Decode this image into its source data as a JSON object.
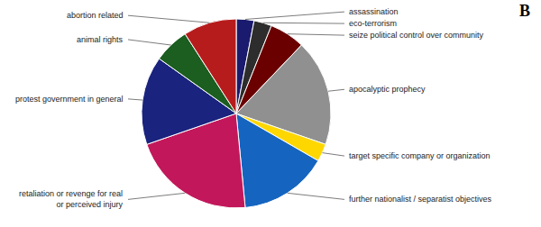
{
  "chart_data": {
    "type": "pie",
    "title": "B",
    "categories": [
      "assassination",
      "eco-terrorism",
      "seize political control over community",
      "apocalyptic prophecy",
      "target specific company or organization",
      "further nationalist / separatist objectives",
      "retaliation or revenge for real\nor perceived injury",
      "protest government in general",
      "animal rights",
      "abortion related"
    ],
    "values": [
      1,
      1,
      2,
      6,
      1,
      5,
      7,
      5,
      2,
      3
    ],
    "colors": [
      "#1a1a6e",
      "#2d2d2d",
      "#6b0000",
      "#909090",
      "#FFD700",
      "#1565C0",
      "#C2185B",
      "#1a237e",
      "#1b5e20",
      "#b71c1c"
    ]
  }
}
